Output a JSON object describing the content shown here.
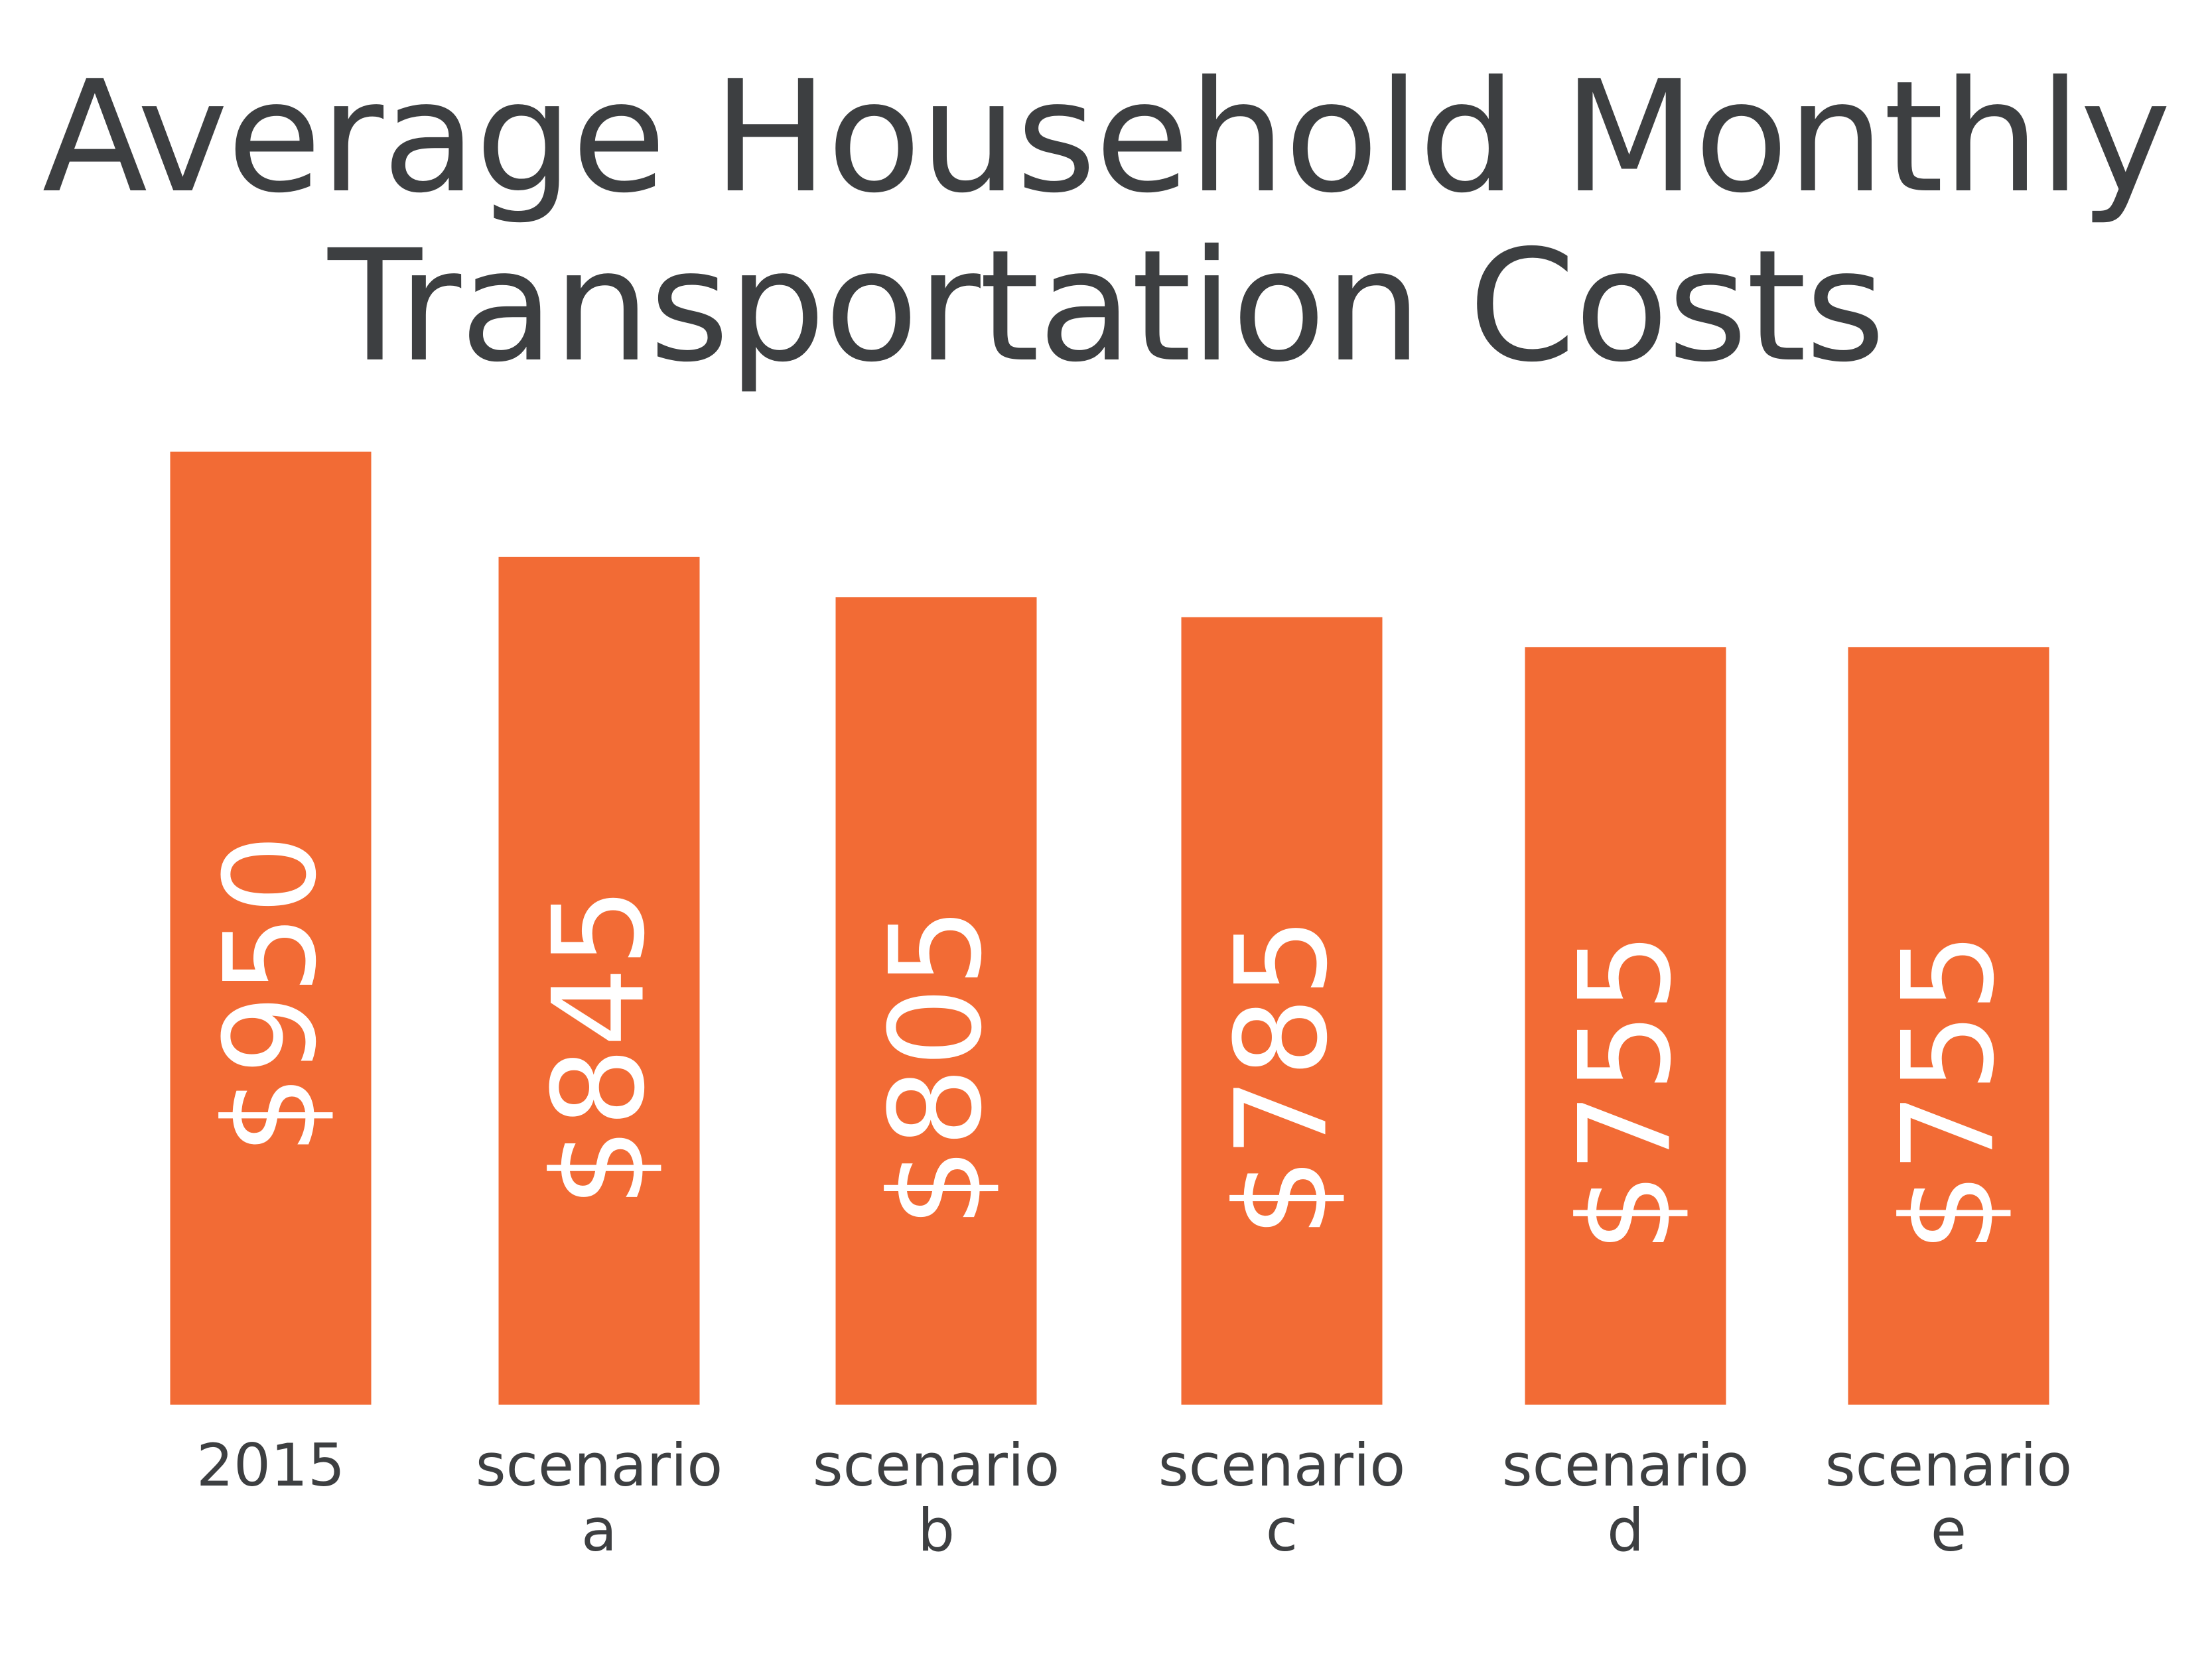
{
  "chart_data": {
    "type": "bar",
    "title": "Average Household Monthly Transportation Costs",
    "title_lines": [
      "Average Household Monthly",
      "Transportation Costs"
    ],
    "categories": [
      "2015",
      "scenario a",
      "scenario b",
      "scenario c",
      "scenario d",
      "scenario e"
    ],
    "category_lines": [
      [
        "2015"
      ],
      [
        "scenario",
        "a"
      ],
      [
        "scenario",
        "b"
      ],
      [
        "scenario",
        "c"
      ],
      [
        "scenario",
        "d"
      ],
      [
        "scenario",
        "e"
      ]
    ],
    "values": [
      950,
      845,
      805,
      785,
      755,
      755
    ],
    "value_labels": [
      "$950",
      "$845",
      "$805",
      "$785",
      "$755",
      "$755"
    ],
    "xlabel": "",
    "ylabel": "",
    "ylim": [
      0,
      950
    ],
    "grid": false,
    "legend": "none",
    "bar_color": "#f26b35",
    "value_label_color": "#ffffff",
    "text_color": "#3d3f41"
  }
}
